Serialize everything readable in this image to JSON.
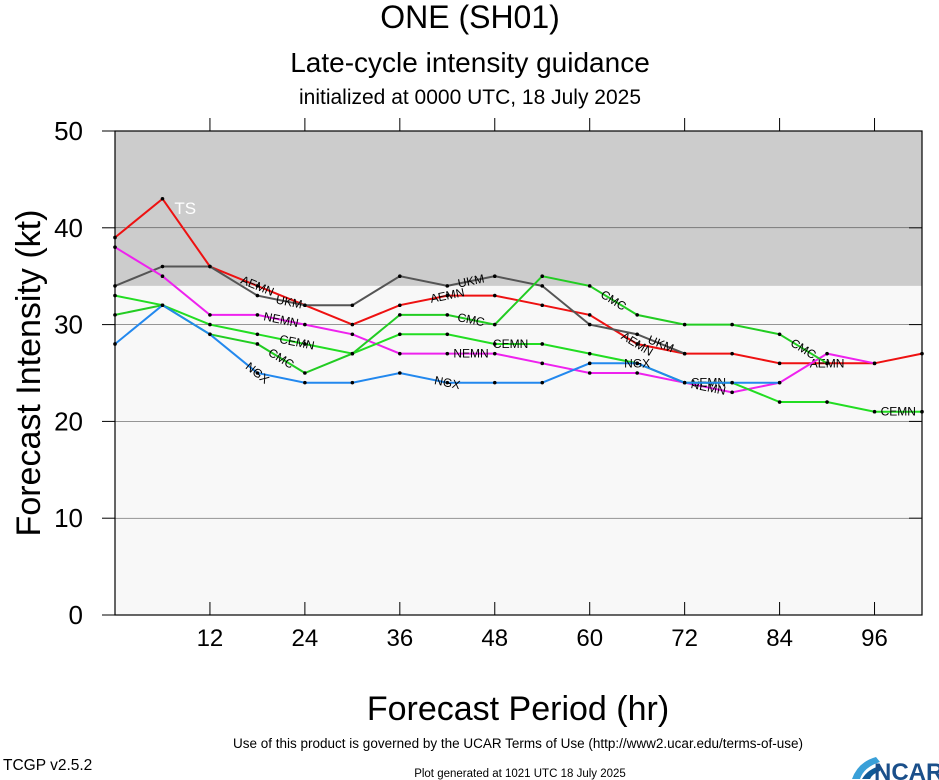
{
  "header": {
    "title": "ONE (SH01)",
    "subtitle": "Late-cycle intensity guidance",
    "init_line": "initialized at 0000 UTC, 18 July 2025"
  },
  "footer": {
    "terms": "Use of this product is governed by the UCAR Terms of Use (http://www2.ucar.edu/terms-of-use)",
    "version": "TCGP v2.5.2",
    "generated": "Plot generated at 1021 UTC   18 July 2025",
    "logo_text": "NCAR"
  },
  "chart_data": {
    "type": "line",
    "title": "ONE (SH01)",
    "xlabel": "Forecast Period (hr)",
    "ylabel": "Forecast Intensity (kt)",
    "xlim": [
      0,
      102
    ],
    "ylim": [
      0,
      50
    ],
    "xticks": [
      12,
      24,
      36,
      48,
      60,
      72,
      84,
      96
    ],
    "yticks": [
      0,
      10,
      20,
      30,
      40,
      50
    ],
    "grid": true,
    "bands": [
      {
        "label": "TS",
        "y_from": 34,
        "y_to": 50,
        "color": "#cccccc"
      }
    ],
    "band_below_color": "#f8f8f8",
    "series": [
      {
        "name": "AEMN",
        "color": "#ee1111",
        "x": [
          0,
          6,
          12,
          18,
          24,
          30,
          36,
          42,
          48,
          54,
          60,
          66,
          72,
          78,
          84,
          90,
          96,
          102
        ],
        "y": [
          39,
          43,
          36,
          34,
          32,
          30,
          32,
          33,
          33,
          32,
          31,
          28,
          27,
          27,
          26,
          26,
          26,
          27
        ],
        "labels": [
          {
            "x": 18,
            "text": "AEMN"
          },
          {
            "x": 42,
            "text": "AEMN"
          },
          {
            "x": 66,
            "text": "AEMN"
          },
          {
            "x": 90,
            "text": "AEMN"
          }
        ]
      },
      {
        "name": "UKM",
        "color": "#555555",
        "x": [
          0,
          6,
          12,
          18,
          24,
          30,
          36,
          42,
          48,
          54,
          60,
          66,
          72
        ],
        "y": [
          34,
          36,
          36,
          33,
          32,
          32,
          35,
          34,
          35,
          34,
          30,
          29,
          27
        ],
        "labels": [
          {
            "x": 22,
            "text": "UKM"
          },
          {
            "x": 45,
            "text": "UKM"
          },
          {
            "x": 69,
            "text": "UKM"
          }
        ]
      },
      {
        "name": "NEMN",
        "color": "#ee22ee",
        "x": [
          0,
          6,
          12,
          18,
          24,
          30,
          36,
          42,
          48,
          54,
          60,
          66,
          72,
          78,
          84,
          90,
          96
        ],
        "y": [
          38,
          35,
          31,
          31,
          30,
          29,
          27,
          27,
          27,
          26,
          25,
          25,
          24,
          23,
          24,
          27,
          26
        ],
        "labels": [
          {
            "x": 21,
            "text": "NEMN"
          },
          {
            "x": 45,
            "text": "NEMN"
          },
          {
            "x": 75,
            "text": "NEMN"
          }
        ]
      },
      {
        "name": "CEMN",
        "color": "#22dd22",
        "x": [
          0,
          6,
          12,
          18,
          24,
          30,
          36,
          42,
          48,
          54,
          60,
          66,
          72,
          78,
          84,
          90,
          96,
          102
        ],
        "y": [
          33,
          32,
          30,
          29,
          28,
          27,
          29,
          29,
          28,
          28,
          27,
          26,
          24,
          24,
          22,
          22,
          21,
          21
        ],
        "labels": [
          {
            "x": 23,
            "text": "CEMN"
          },
          {
            "x": 50,
            "text": "CEMN"
          },
          {
            "x": 75,
            "text": "CEMN"
          },
          {
            "x": 99,
            "text": "CEMN"
          }
        ]
      },
      {
        "name": "CMC",
        "color": "#22cc22",
        "x": [
          0,
          6,
          12,
          18,
          24,
          30,
          36,
          42,
          48,
          54,
          60,
          66,
          72,
          78,
          84,
          90
        ],
        "y": [
          31,
          32,
          29,
          28,
          25,
          27,
          31,
          31,
          30,
          35,
          34,
          31,
          30,
          30,
          29,
          26
        ],
        "labels": [
          {
            "x": 21,
            "text": "CMC"
          },
          {
            "x": 45,
            "text": "CMC"
          },
          {
            "x": 63,
            "text": "CMC"
          },
          {
            "x": 87,
            "text": "CMC"
          }
        ]
      },
      {
        "name": "NGX",
        "color": "#2288ee",
        "x": [
          0,
          6,
          12,
          18,
          24,
          30,
          36,
          42,
          48,
          54,
          60,
          66,
          72,
          78,
          84
        ],
        "y": [
          28,
          32,
          29,
          25,
          24,
          24,
          25,
          24,
          24,
          24,
          26,
          26,
          24,
          24,
          24
        ],
        "labels": [
          {
            "x": 18,
            "text": "NGX"
          },
          {
            "x": 42,
            "text": "NGX"
          },
          {
            "x": 66,
            "text": "NGX"
          }
        ]
      }
    ]
  }
}
